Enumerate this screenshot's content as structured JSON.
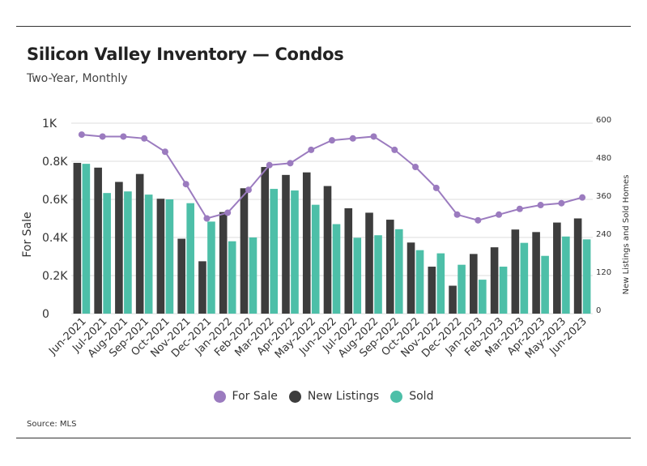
{
  "header": {
    "title": "Silicon Valley Inventory — Condos",
    "subtitle": "Two-Year, Monthly"
  },
  "footer": {
    "source": "Source:  MLS"
  },
  "colors": {
    "for_sale": "#9b7bbf",
    "new_listings": "#3d3d3d",
    "sold": "#4dbfa8",
    "grid": "#dddddd"
  },
  "chart_data": {
    "type": "bar",
    "categories": [
      "Jun-2021",
      "Jul-2021",
      "Aug-2021",
      "Sep-2021",
      "Oct-2021",
      "Nov-2021",
      "Dec-2021",
      "Jan-2022",
      "Feb-2022",
      "Mar-2022",
      "Apr-2022",
      "May-2022",
      "Jun-2022",
      "Jul-2022",
      "Aug-2022",
      "Sep-2022",
      "Oct-2022",
      "Nov-2022",
      "Dec-2022",
      "Jan-2023",
      "Feb-2023",
      "Mar-2023",
      "Apr-2023",
      "May-2023",
      "Jun-2023"
    ],
    "series": [
      {
        "name": "For Sale",
        "type": "line",
        "axis": "left",
        "values": [
          940,
          930,
          930,
          920,
          850,
          680,
          500,
          530,
          650,
          780,
          790,
          860,
          910,
          920,
          930,
          860,
          770,
          660,
          520,
          490,
          520,
          550,
          570,
          580,
          610
        ]
      },
      {
        "name": "New Listings",
        "type": "bar",
        "axis": "right",
        "values": [
          475,
          460,
          415,
          440,
          362,
          236,
          165,
          320,
          395,
          462,
          437,
          445,
          402,
          332,
          318,
          296,
          224,
          148,
          88,
          188,
          209,
          265,
          257,
          287,
          300
        ]
      },
      {
        "name": "Sold",
        "type": "bar",
        "axis": "right",
        "values": [
          472,
          380,
          385,
          375,
          360,
          348,
          290,
          228,
          240,
          393,
          388,
          343,
          282,
          239,
          247,
          266,
          200,
          190,
          154,
          107,
          148,
          223,
          182,
          243,
          234
        ]
      }
    ],
    "ylabel": "For Sale",
    "y2label": "New Listings and Sold Homes",
    "ylim": [
      0,
      1000
    ],
    "y2lim": [
      0,
      600
    ],
    "yticks": [
      "0",
      "0.2K",
      "0.4K",
      "0.6K",
      "0.8K",
      "1K"
    ],
    "y2ticks": [
      "0",
      "120",
      "240",
      "360",
      "480",
      "600"
    ],
    "grid": true,
    "legend_position": "bottom"
  }
}
